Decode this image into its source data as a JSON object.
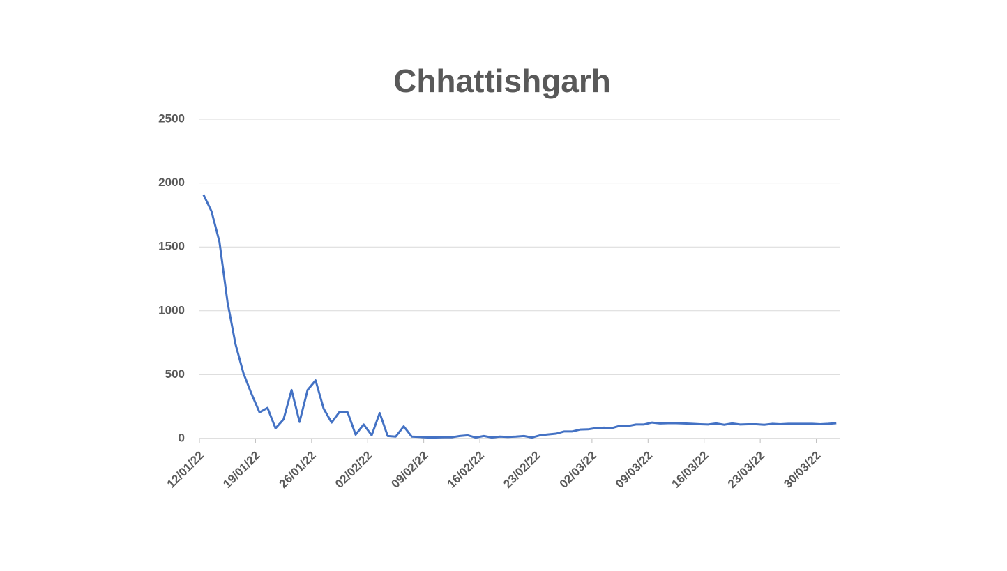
{
  "chart_data": {
    "type": "line",
    "title": "Chhattishgarh",
    "categories": [
      "12/01/22",
      null,
      null,
      null,
      null,
      null,
      null,
      "19/01/22",
      null,
      null,
      null,
      null,
      null,
      null,
      "26/01/22",
      null,
      null,
      null,
      null,
      null,
      null,
      "02/02/22",
      null,
      null,
      null,
      null,
      null,
      null,
      "09/02/22",
      null,
      null,
      null,
      null,
      null,
      null,
      "16/02/22",
      null,
      null,
      null,
      null,
      null,
      null,
      "23/02/22",
      null,
      null,
      null,
      null,
      null,
      null,
      "02/03/22",
      null,
      null,
      null,
      null,
      null,
      null,
      "09/03/22",
      null,
      null,
      null,
      null,
      null,
      null,
      "16/03/22",
      null,
      null,
      null,
      null,
      null,
      null,
      "23/03/22",
      null,
      null,
      null,
      null,
      null,
      null,
      "30/03/22",
      null,
      null
    ],
    "series": [
      {
        "name": "Chhattishgarh",
        "color": "#4472c4",
        "values": [
          1910,
          1780,
          1540,
          1070,
          740,
          510,
          350,
          205,
          240,
          80,
          150,
          380,
          130,
          380,
          455,
          235,
          125,
          210,
          205,
          30,
          110,
          25,
          200,
          20,
          15,
          95,
          15,
          12,
          8,
          8,
          10,
          10,
          20,
          25,
          8,
          20,
          8,
          15,
          12,
          15,
          20,
          8,
          25,
          32,
          38,
          55,
          55,
          70,
          72,
          82,
          85,
          82,
          100,
          98,
          110,
          110,
          125,
          118,
          120,
          120,
          118,
          115,
          112,
          110,
          118,
          108,
          118,
          110,
          112,
          112,
          108,
          115,
          112,
          115,
          115,
          115,
          115,
          112,
          115,
          120
        ]
      }
    ],
    "ylim": [
      0,
      2500
    ],
    "yticks": [
      0,
      500,
      1000,
      1500,
      2000,
      2500
    ],
    "grid": true
  }
}
